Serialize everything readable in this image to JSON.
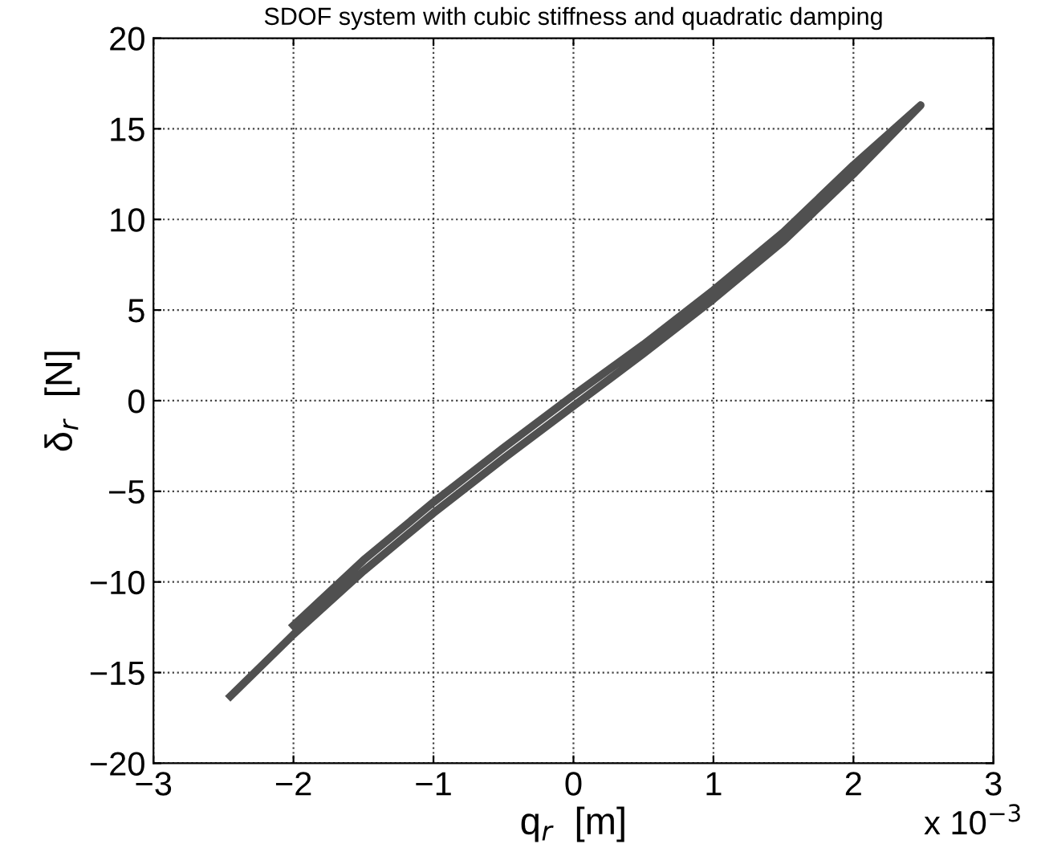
{
  "chart_data": {
    "type": "line",
    "title": "SDOF system with cubic stiffness and quadratic damping",
    "xlabel": "q$_{r}$  [m]",
    "ylabel": "δ$_{r}$  [N]",
    "annotations": [
      "x 10$^{−3}$"
    ],
    "series": [
      {
        "color": "#505050",
        "x": [
          -2.45,
          -2.0,
          -1.5,
          -1.0,
          -0.5,
          0.0,
          0.5,
          1.0,
          1.5,
          2.0,
          2.48,
          2.0,
          1.5,
          1.0,
          0.5,
          0.0,
          -0.5,
          -1.0,
          -1.5,
          -2.0
        ],
        "values": [
          -16.3,
          -12.9,
          -9.4,
          -6.2,
          -3.2,
          -0.3,
          2.6,
          5.6,
          8.8,
          12.5,
          16.3,
          13.0,
          9.3,
          6.1,
          3.1,
          0.3,
          -2.6,
          -5.6,
          -8.8,
          -12.4
        ]
      }
    ],
    "xlim": [
      -3,
      3
    ],
    "xticks": [
      {
        "value": -3,
        "label": "−3"
      },
      {
        "value": -2,
        "label": "−2"
      },
      {
        "value": -1,
        "label": "−1"
      },
      0,
      1,
      2,
      3
    ],
    "ylim": [
      -20,
      20
    ],
    "yticks": [
      {
        "value": -20,
        "label": "−20"
      },
      {
        "value": -15,
        "label": "−15"
      },
      {
        "value": -10,
        "label": "−10"
      },
      {
        "value": -5,
        "label": "−5"
      },
      0,
      5,
      10,
      15,
      20
    ],
    "grid": true,
    "line_style": "solid",
    "marker": "none"
  }
}
